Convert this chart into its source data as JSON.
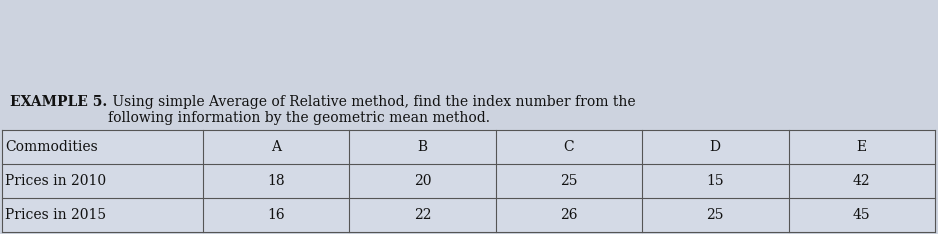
{
  "title_bold": "EXAMPLE 5.",
  "title_normal": " Using simple Average of Relative method, find the index number from the\nfollowing information by the geometric mean method.",
  "col_headers": [
    "Commodities",
    "A",
    "B",
    "C",
    "D",
    "E"
  ],
  "rows": [
    [
      "Prices in 2010",
      "18",
      "20",
      "25",
      "15",
      "42"
    ],
    [
      "Prices in 2015",
      "16",
      "22",
      "26",
      "25",
      "45"
    ]
  ],
  "bg_color": "#cdd3df",
  "table_bg": "#d4dae6",
  "text_color": "#111111",
  "border_color": "#555555",
  "title_fontsize": 10.0,
  "table_fontsize": 10.0,
  "fig_width": 9.38,
  "fig_height": 2.34
}
